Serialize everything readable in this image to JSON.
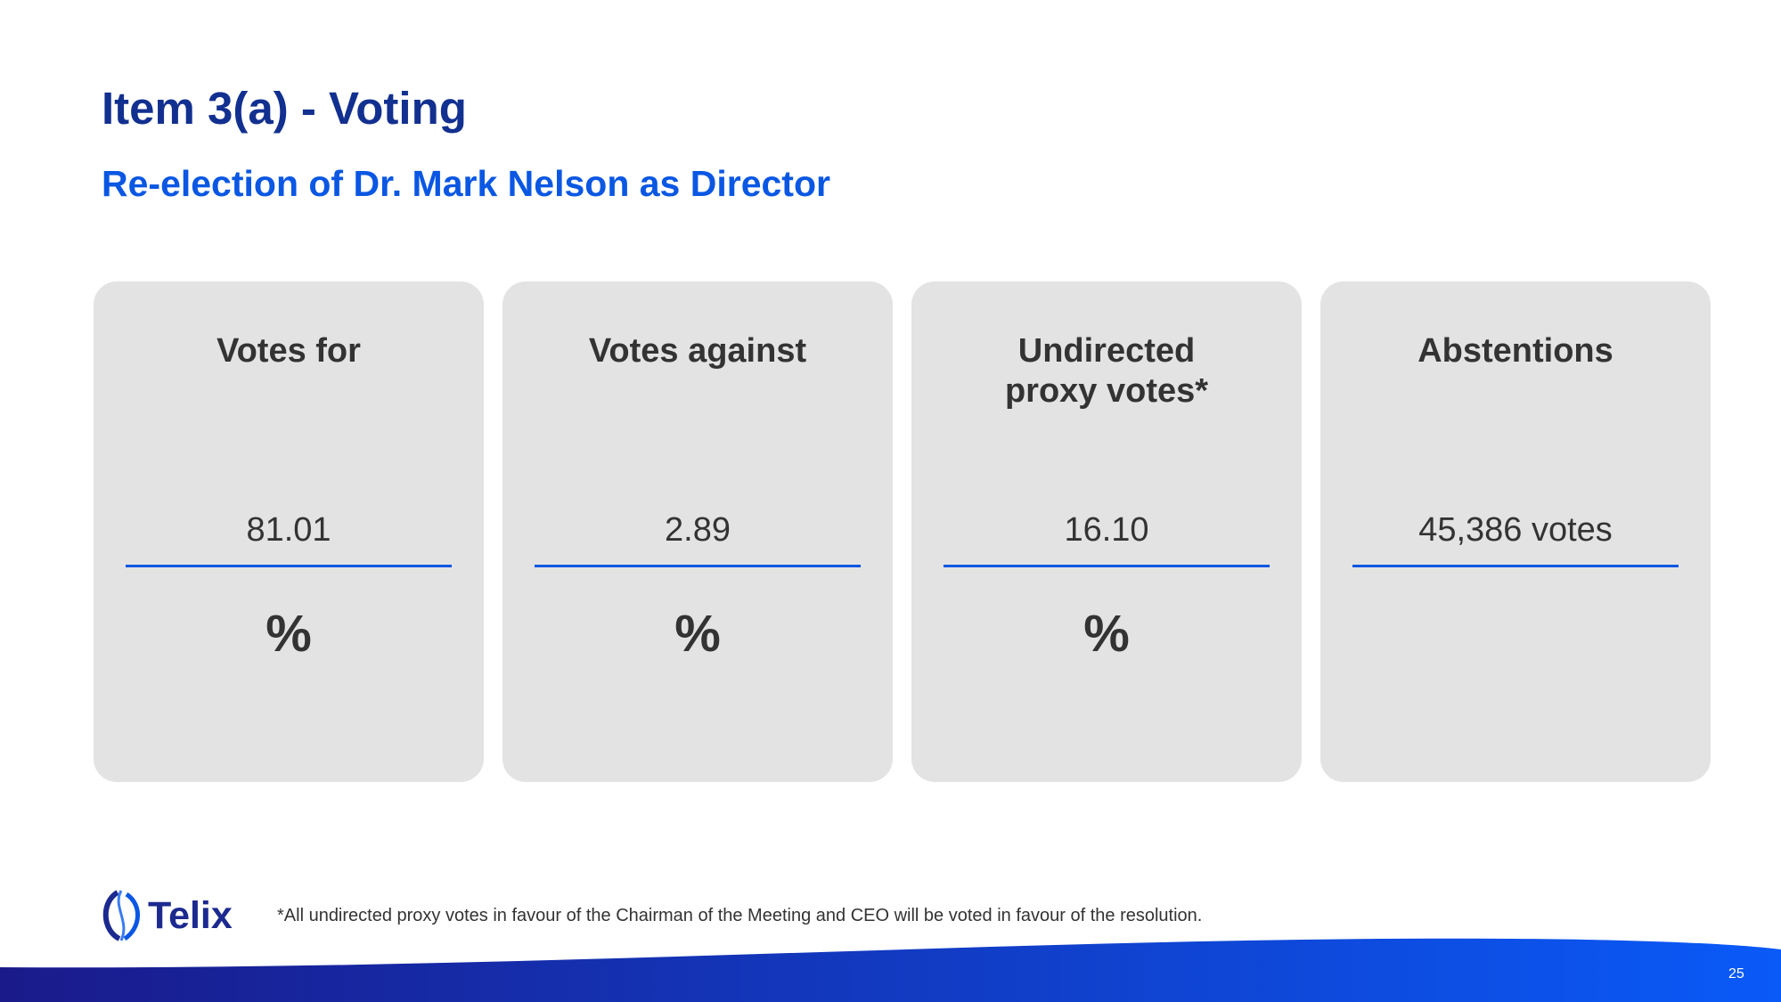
{
  "header": {
    "title": "Item 3(a) - Voting",
    "subtitle": "Re-election of Dr. Mark Nelson as Director"
  },
  "cards": [
    {
      "label": [
        "Votes for"
      ],
      "value": "81.01",
      "unit": "%"
    },
    {
      "label": [
        "Votes against"
      ],
      "value": "2.89",
      "unit": "%"
    },
    {
      "label": [
        "Undirected",
        "proxy votes*"
      ],
      "value": "16.10",
      "unit": "%"
    },
    {
      "label": [
        "Abstentions"
      ],
      "value": "45,386 votes"
    }
  ],
  "footer": {
    "logo": "Telix",
    "footnote": "*All undirected proxy votes in favour of the Chairman of the Meeting and CEO will be voted in favour of the resolution.",
    "page": "25"
  }
}
